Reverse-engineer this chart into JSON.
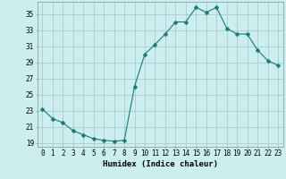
{
  "x": [
    0,
    1,
    2,
    3,
    4,
    5,
    6,
    7,
    8,
    9,
    10,
    11,
    12,
    13,
    14,
    15,
    16,
    17,
    18,
    19,
    20,
    21,
    22,
    23
  ],
  "y": [
    23.2,
    22.0,
    21.5,
    20.5,
    20.0,
    19.5,
    19.3,
    19.2,
    19.3,
    26.0,
    30.0,
    31.2,
    32.5,
    34.0,
    34.0,
    35.8,
    35.2,
    35.8,
    33.2,
    32.5,
    32.5,
    30.5,
    29.2,
    28.6
  ],
  "line_color": "#1a7a6e",
  "marker": "D",
  "marker_size": 2.5,
  "bg_color": "#cceeee",
  "grid_color": "#aacccc",
  "xlabel": "Humidex (Indice chaleur)",
  "xlim": [
    -0.5,
    23.5
  ],
  "ylim": [
    18.5,
    36.5
  ],
  "yticks": [
    19,
    21,
    23,
    25,
    27,
    29,
    31,
    33,
    35
  ],
  "xticks": [
    0,
    1,
    2,
    3,
    4,
    5,
    6,
    7,
    8,
    9,
    10,
    11,
    12,
    13,
    14,
    15,
    16,
    17,
    18,
    19,
    20,
    21,
    22,
    23
  ],
  "tick_fontsize": 5.5,
  "xlabel_fontsize": 6.5
}
